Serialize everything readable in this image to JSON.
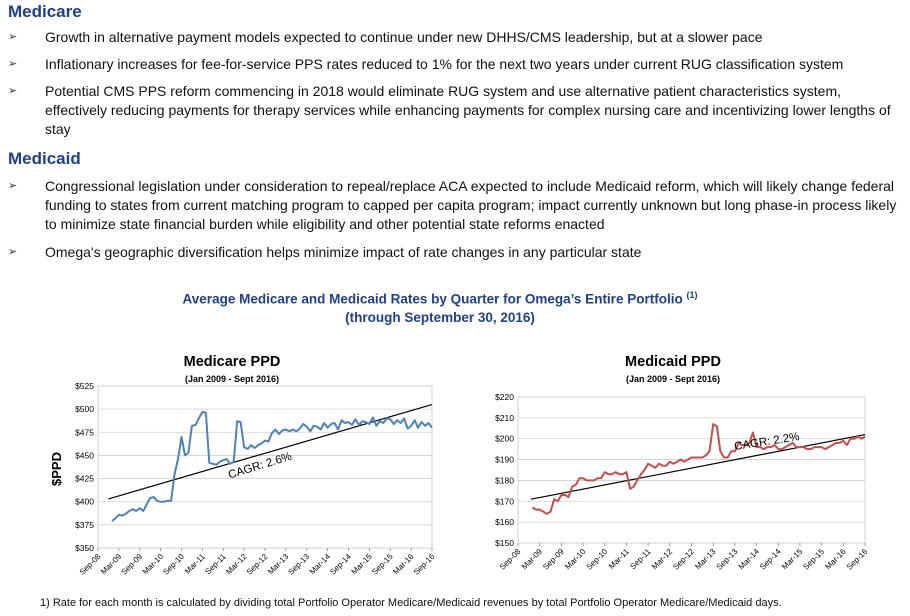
{
  "medicare": {
    "heading": "Medicare",
    "bullets": [
      {
        "arrow": "➢",
        "text": "Growth in alternative payment models expected to continue under new DHHS/CMS leadership, but at a slower pace"
      },
      {
        "arrow": "➢",
        "text": "Inflationary increases for fee-for-service PPS rates reduced to 1% for the next two years under current RUG classification system"
      },
      {
        "arrow": "➢",
        "text": "Potential CMS PPS reform commencing in 2018 would eliminate RUG system and use alternative patient characteristics system, effectively reducing payments for therapy services while enhancing payments for complex nursing care and incentivizing lower lengths of stay"
      }
    ]
  },
  "medicaid": {
    "heading": "Medicaid",
    "bullets": [
      {
        "arrow": "➢",
        "text": "Congressional legislation under consideration to repeal/replace ACA expected to include Medicaid reform, which will likely change federal funding to states from current matching program to capped per capita program; impact currently unknown but long phase-in process likely to minimize state financial burden while eligibility and other potential state reforms enacted"
      },
      {
        "arrow": "➢",
        "text": "Omega's geographic diversification helps minimize impact of rate changes in any particular state"
      }
    ]
  },
  "section_title": {
    "line1": "Average Medicare and Medicaid Rates by Quarter for Omega’s Entire Portfolio",
    "sup": "(1)",
    "line2": "(through September 30, 2016)"
  },
  "footnote": "1) Rate for each month is calculated by dividing total Portfolio Operator Medicare/Medicaid revenues by total Portfolio Operator Medicare/Medicaid days.",
  "chart_data": [
    {
      "type": "line",
      "title": "Medicare PPD",
      "subtitle": "(Jan 2009 - Sept 2016)",
      "ylabel": "$PPD",
      "xlabel": "",
      "ylim": [
        350,
        525
      ],
      "yticks": [
        350,
        375,
        400,
        425,
        450,
        475,
        500,
        525
      ],
      "ytick_labels": [
        "$350",
        "$375",
        "$400",
        "$425",
        "$450",
        "$475",
        "$500",
        "$525"
      ],
      "categories": [
        "Sep-08",
        "Mar-09",
        "Sep-09",
        "Mar-10",
        "Sep-10",
        "Mar-11",
        "Sep-11",
        "Mar-12",
        "Sep-12",
        "Mar-13",
        "Sep-13",
        "Mar-14",
        "Sep-14",
        "Mar-15",
        "Sep-15",
        "Mar-16",
        "Sep-16"
      ],
      "annotation": "CAGR: 2.6%",
      "trendline": {
        "x": [
          0.5,
          16
        ],
        "y": [
          403,
          505
        ]
      },
      "grid": true,
      "color": "#4f81bd",
      "series": [
        {
          "name": "Medicare PPD",
          "x": [
            0.67,
            0.83,
            1.0,
            1.17,
            1.33,
            1.5,
            1.67,
            1.83,
            2.0,
            2.17,
            2.33,
            2.5,
            2.67,
            2.83,
            3.0,
            3.17,
            3.33,
            3.5,
            3.67,
            3.83,
            4.0,
            4.17,
            4.33,
            4.5,
            4.67,
            4.83,
            5.0,
            5.17,
            5.33,
            5.5,
            5.67,
            5.83,
            6.0,
            6.17,
            6.33,
            6.5,
            6.67,
            6.83,
            7.0,
            7.17,
            7.33,
            7.5,
            7.67,
            7.83,
            8.0,
            8.17,
            8.33,
            8.5,
            8.67,
            8.83,
            9.0,
            9.17,
            9.33,
            9.5,
            9.67,
            9.83,
            10.0,
            10.17,
            10.33,
            10.5,
            10.67,
            10.83,
            11.0,
            11.17,
            11.33,
            11.5,
            11.67,
            11.83,
            12.0,
            12.17,
            12.33,
            12.5,
            12.67,
            12.83,
            13.0,
            13.17,
            13.33,
            13.5,
            13.67,
            13.83,
            14.0,
            14.17,
            14.33,
            14.5,
            14.67,
            14.83,
            15.0,
            15.17,
            15.33,
            15.5,
            15.67,
            15.83,
            16.0
          ],
          "values": [
            379,
            382,
            386,
            385,
            387,
            390,
            392,
            390,
            393,
            390,
            397,
            404,
            405,
            401,
            400,
            400,
            401,
            401,
            430,
            446,
            470,
            450,
            453,
            482,
            483,
            490,
            497,
            496,
            442,
            441,
            440,
            443,
            445,
            446,
            441,
            443,
            487,
            486,
            459,
            457,
            461,
            458,
            461,
            463,
            466,
            465,
            474,
            478,
            473,
            477,
            478,
            476,
            478,
            476,
            479,
            484,
            481,
            476,
            482,
            481,
            478,
            485,
            480,
            484,
            485,
            478,
            488,
            485,
            486,
            483,
            489,
            483,
            487,
            486,
            484,
            491,
            482,
            487,
            485,
            490,
            489,
            484,
            488,
            485,
            490,
            479,
            482,
            488,
            480,
            486,
            482,
            485,
            480
          ]
        }
      ]
    },
    {
      "type": "line",
      "title": "Medicaid PPD",
      "subtitle": "(Jan 2009 - Sept 2016)",
      "ylabel": "",
      "xlabel": "",
      "ylim": [
        150,
        220
      ],
      "yticks": [
        150,
        160,
        170,
        180,
        190,
        200,
        210,
        220
      ],
      "ytick_labels": [
        "$150",
        "$160",
        "$170",
        "$180",
        "$190",
        "$200",
        "$210",
        "$220"
      ],
      "categories": [
        "Sep-08",
        "Mar-09",
        "Sep-09",
        "Mar-10",
        "Sep-10",
        "Mar-11",
        "Sep-11",
        "Mar-12",
        "Sep-12",
        "Mar-13",
        "Sep-13",
        "Mar-14",
        "Sep-14",
        "Mar-15",
        "Sep-15",
        "Mar-16",
        "Sep-16"
      ],
      "annotation": "CAGR: 2.2%",
      "trendline": {
        "x": [
          0.6,
          16
        ],
        "y": [
          171,
          202
        ]
      },
      "grid": true,
      "color": "#c0504d",
      "series": [
        {
          "name": "Medicaid PPD",
          "x": [
            0.67,
            0.83,
            1.0,
            1.17,
            1.33,
            1.5,
            1.67,
            1.83,
            2.0,
            2.17,
            2.33,
            2.5,
            2.67,
            2.83,
            3.0,
            3.17,
            3.33,
            3.5,
            3.67,
            3.83,
            4.0,
            4.17,
            4.33,
            4.5,
            4.67,
            4.83,
            5.0,
            5.17,
            5.33,
            5.5,
            5.67,
            5.83,
            6.0,
            6.17,
            6.33,
            6.5,
            6.67,
            6.83,
            7.0,
            7.17,
            7.33,
            7.5,
            7.67,
            7.83,
            8.0,
            8.17,
            8.33,
            8.5,
            8.67,
            8.83,
            9.0,
            9.17,
            9.33,
            9.5,
            9.67,
            9.83,
            10.0,
            10.17,
            10.33,
            10.5,
            10.67,
            10.83,
            11.0,
            11.17,
            11.33,
            11.5,
            11.67,
            11.83,
            12.0,
            12.17,
            12.33,
            12.5,
            12.67,
            12.83,
            13.0,
            13.17,
            13.33,
            13.5,
            13.67,
            13.83,
            14.0,
            14.17,
            14.33,
            14.5,
            14.67,
            14.83,
            15.0,
            15.17,
            15.33,
            15.5,
            15.67,
            15.83,
            16.0
          ],
          "values": [
            167,
            166,
            166,
            165,
            164,
            165,
            171,
            170,
            173,
            173,
            172,
            177,
            178,
            181,
            181,
            180,
            180,
            180,
            181,
            181,
            184,
            183,
            183,
            184,
            183,
            183,
            184,
            176,
            177,
            180,
            183,
            185,
            188,
            187,
            186,
            188,
            187,
            187,
            189,
            188,
            189,
            190,
            189,
            190,
            191,
            191,
            191,
            191,
            192,
            194,
            207,
            206,
            194,
            191,
            191,
            194,
            194,
            198,
            197,
            197,
            198,
            203,
            196,
            196,
            195,
            196,
            196,
            197,
            195,
            195,
            196,
            197,
            198,
            196,
            196,
            196,
            195,
            195,
            196,
            196,
            196,
            195,
            196,
            197,
            198,
            198,
            199,
            197,
            200,
            200,
            201,
            200,
            201
          ]
        }
      ]
    }
  ]
}
